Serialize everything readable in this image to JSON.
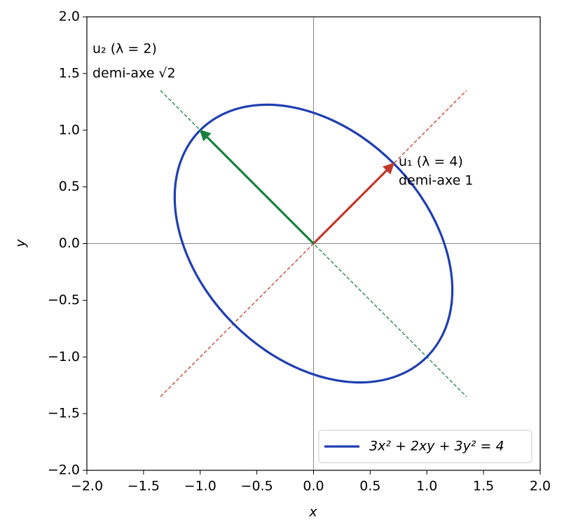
{
  "chart_data": {
    "type": "line",
    "xlabel": "x",
    "ylabel": "y",
    "xlim": [
      -2,
      2
    ],
    "ylim": [
      -2,
      2
    ],
    "xticks": [
      {
        "value": -2,
        "label": "−2.0"
      },
      {
        "value": -1.5,
        "label": "−1.5"
      },
      {
        "value": -1,
        "label": "−1.0"
      },
      {
        "value": -0.5,
        "label": "−0.5"
      },
      {
        "value": 0,
        "label": "0.0"
      },
      {
        "value": 0.5,
        "label": "0.5"
      },
      {
        "value": 1,
        "label": "1.0"
      },
      {
        "value": 1.5,
        "label": "1.5"
      },
      {
        "value": 2,
        "label": "2.0"
      }
    ],
    "yticks": [
      {
        "value": -2,
        "label": "−2.0"
      },
      {
        "value": -1.5,
        "label": "−1.5"
      },
      {
        "value": -1,
        "label": "−1.0"
      },
      {
        "value": -0.5,
        "label": "−0.5"
      },
      {
        "value": 0,
        "label": "0.0"
      },
      {
        "value": 0.5,
        "label": "0.5"
      },
      {
        "value": 1,
        "label": "1.0"
      },
      {
        "value": 1.5,
        "label": "1.5"
      },
      {
        "value": 2,
        "label": "2.0"
      }
    ],
    "grid": false,
    "zero_lines": true,
    "legend": "lower right",
    "series": [
      {
        "name": "3x² + 2xy + 3y² = 4",
        "color": "#1f3fb0",
        "x": [
          0.707,
          0.424,
          0.112,
          -0.207,
          -0.512,
          -0.783,
          -1,
          -1.149,
          -1.22,
          -1.207,
          -1.112,
          -0.942,
          -0.707,
          -0.424,
          -0.112,
          0.207,
          0.512,
          0.783,
          1,
          1.149,
          1.22,
          1.207,
          1.112,
          0.942,
          0.707
        ],
        "values": [
          0.707,
          0.942,
          1.112,
          1.207,
          1.22,
          1.149,
          1,
          0.783,
          0.512,
          0.207,
          -0.112,
          -0.424,
          -0.707,
          -0.942,
          -1.112,
          -1.207,
          -1.22,
          -1.149,
          -1,
          -0.783,
          -0.512,
          -0.207,
          0.112,
          0.424,
          0.707
        ]
      }
    ],
    "guides": [
      {
        "color": "#c0392b",
        "x": [
          -1.35,
          1.35
        ],
        "y": [
          -1.35,
          1.35
        ]
      },
      {
        "color": "#17803d",
        "x": [
          -1.35,
          1.35
        ],
        "y": [
          1.35,
          -1.35
        ]
      }
    ],
    "vectors": [
      {
        "color": "#c0392b",
        "x": [
          0,
          0.707
        ],
        "y": [
          0,
          0.707
        ]
      },
      {
        "color": "#17803d",
        "x": [
          0,
          -1
        ],
        "y": [
          0,
          1
        ]
      }
    ],
    "annotations": [
      {
        "text": "u₁ (λ = 4)",
        "color": "#c0392b"
      },
      {
        "text": "demi-axe 1",
        "color": "#c0392b"
      },
      {
        "text": "u₂ (λ = 2)",
        "color": "#17803d"
      },
      {
        "text": "demi-axe √2",
        "color": "#17803d"
      }
    ]
  }
}
